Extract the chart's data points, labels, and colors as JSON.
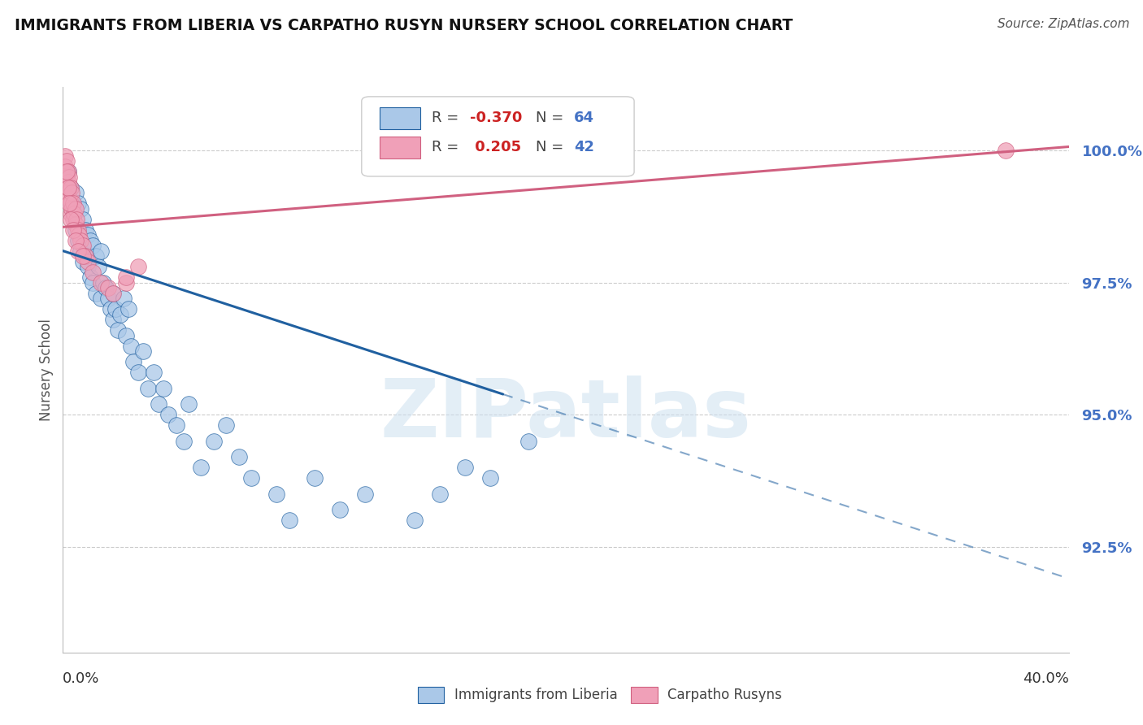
{
  "title": "IMMIGRANTS FROM LIBERIA VS CARPATHO RUSYN NURSERY SCHOOL CORRELATION CHART",
  "source": "Source: ZipAtlas.com",
  "ylabel": "Nursery School",
  "y_ticks": [
    92.5,
    95.0,
    97.5,
    100.0
  ],
  "xlim": [
    0.0,
    40.0
  ],
  "ylim": [
    90.5,
    101.2
  ],
  "R_blue": -0.37,
  "N_blue": 64,
  "R_pink": 0.205,
  "N_pink": 42,
  "watermark": "ZIPatlas",
  "legend_label_blue": "Immigrants from Liberia",
  "legend_label_pink": "Carpatho Rusyns",
  "blue_color": "#aac8e8",
  "blue_line_color": "#2060a0",
  "pink_color": "#f0a0b8",
  "pink_line_color": "#d06080",
  "blue_dots_x": [
    0.2,
    0.3,
    0.3,
    0.4,
    0.5,
    0.5,
    0.6,
    0.6,
    0.7,
    0.7,
    0.8,
    0.8,
    0.9,
    0.9,
    1.0,
    1.0,
    1.1,
    1.1,
    1.2,
    1.2,
    1.3,
    1.3,
    1.4,
    1.5,
    1.5,
    1.6,
    1.7,
    1.8,
    1.9,
    2.0,
    2.0,
    2.1,
    2.2,
    2.3,
    2.4,
    2.5,
    2.6,
    2.7,
    2.8,
    3.0,
    3.2,
    3.4,
    3.6,
    3.8,
    4.0,
    4.2,
    4.5,
    4.8,
    5.0,
    5.5,
    6.0,
    6.5,
    7.0,
    7.5,
    8.5,
    9.0,
    10.0,
    11.0,
    12.0,
    14.0,
    15.0,
    16.0,
    17.0,
    18.5
  ],
  "blue_dots_y": [
    99.6,
    99.3,
    99.0,
    98.8,
    99.2,
    98.5,
    99.0,
    98.3,
    98.9,
    98.1,
    98.7,
    97.9,
    98.5,
    98.0,
    98.4,
    97.8,
    98.3,
    97.6,
    98.2,
    97.5,
    98.0,
    97.3,
    97.8,
    98.1,
    97.2,
    97.5,
    97.4,
    97.2,
    97.0,
    97.3,
    96.8,
    97.0,
    96.6,
    96.9,
    97.2,
    96.5,
    97.0,
    96.3,
    96.0,
    95.8,
    96.2,
    95.5,
    95.8,
    95.2,
    95.5,
    95.0,
    94.8,
    94.5,
    95.2,
    94.0,
    94.5,
    94.8,
    94.2,
    93.8,
    93.5,
    93.0,
    93.8,
    93.2,
    93.5,
    93.0,
    93.5,
    94.0,
    93.8,
    94.5
  ],
  "pink_dots_x": [
    0.1,
    0.1,
    0.15,
    0.15,
    0.2,
    0.2,
    0.2,
    0.25,
    0.25,
    0.3,
    0.3,
    0.3,
    0.35,
    0.35,
    0.4,
    0.4,
    0.45,
    0.5,
    0.5,
    0.55,
    0.6,
    0.65,
    0.7,
    0.8,
    0.9,
    1.0,
    1.2,
    1.5,
    1.8,
    2.0,
    2.5,
    3.0,
    0.15,
    0.2,
    0.25,
    0.3,
    0.4,
    0.5,
    0.6,
    0.8,
    37.5,
    2.5
  ],
  "pink_dots_y": [
    99.9,
    99.7,
    99.8,
    99.5,
    99.6,
    99.4,
    99.2,
    99.5,
    99.1,
    99.3,
    99.0,
    98.8,
    99.2,
    98.9,
    99.0,
    98.7,
    98.8,
    98.9,
    98.6,
    98.7,
    98.5,
    98.4,
    98.3,
    98.2,
    98.0,
    97.9,
    97.7,
    97.5,
    97.4,
    97.3,
    97.5,
    97.8,
    99.6,
    99.3,
    99.0,
    98.7,
    98.5,
    98.3,
    98.1,
    98.0,
    100.0,
    97.6
  ],
  "blue_trendline_x0": 0.0,
  "blue_trendline_x_solid_end": 17.5,
  "blue_trendline_x_dash_end": 40.0,
  "blue_trendline_y0": 98.1,
  "blue_trendline_slope": -0.155,
  "pink_trendline_x0": 0.0,
  "pink_trendline_x_end": 40.0,
  "pink_trendline_y0": 98.55,
  "pink_trendline_slope": 0.038
}
